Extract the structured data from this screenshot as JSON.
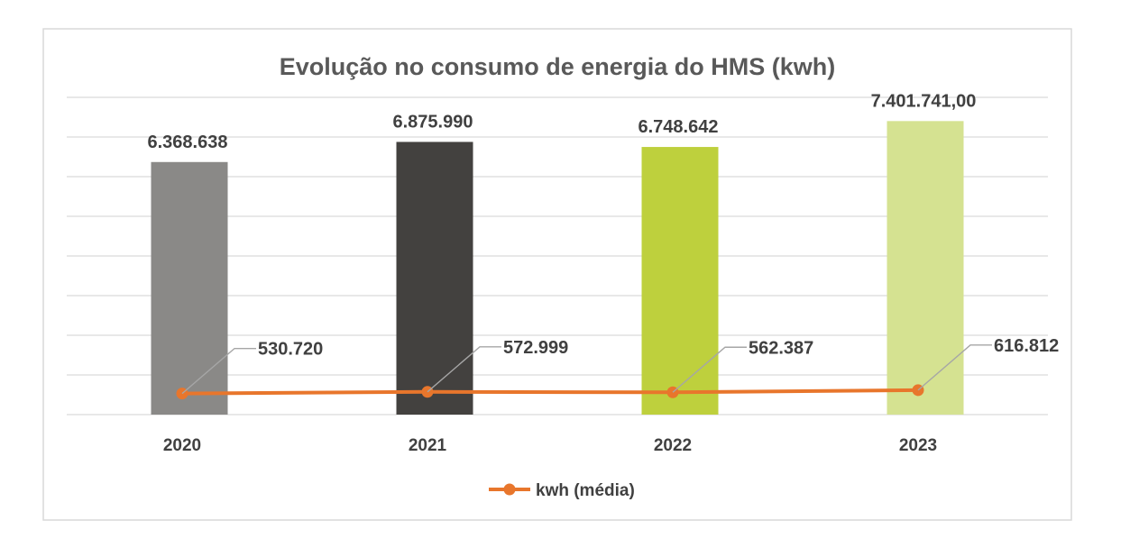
{
  "chart_data": {
    "type": "bar",
    "title": "Evolução no consumo de energia do HMS (kwh)",
    "categories": [
      "2020",
      "2021",
      "2022",
      "2023"
    ],
    "series": [
      {
        "kind": "bar",
        "values": [
          6368638,
          6875990,
          6748642,
          7401741
        ],
        "labels": [
          "6.368.638",
          "6.875.990",
          "6.748.642",
          "7.401.741,00"
        ],
        "colors": [
          "#8a8987",
          "#43413f",
          "#bed03d",
          "#d5e291"
        ]
      },
      {
        "kind": "line",
        "name": "kwh (média)",
        "values": [
          530720,
          572999,
          562387,
          616812
        ],
        "labels": [
          "530.720",
          "572.999",
          "562.387",
          "616.812"
        ],
        "color": "#e8762c"
      }
    ],
    "xlabel": "",
    "ylabel": "",
    "ylim": [
      0,
      8000000
    ],
    "y_axis_visible": false,
    "grid": true,
    "legend_position": "bottom"
  }
}
